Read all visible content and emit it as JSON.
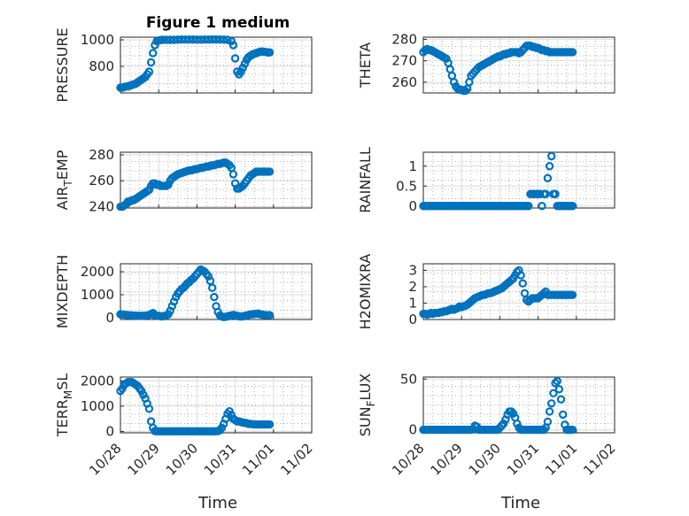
{
  "figure": {
    "title": "Figure 1 medium",
    "marker_color": "#0072bd",
    "x_tick_labels": [
      "10/28",
      "10/29",
      "10/30",
      "10/31",
      "11/01",
      "11/02"
    ],
    "x_label": "Time"
  },
  "chart_data": [
    {
      "type": "scatter",
      "ylabel": "PRESSURE",
      "xlim": [
        0,
        5
      ],
      "ylim": [
        600,
        1020
      ],
      "yticks": [
        800,
        1000
      ],
      "ytick_labels": [
        "800",
        "1000"
      ],
      "grid": true,
      "x": [
        0.0,
        0.05,
        0.1,
        0.15,
        0.2,
        0.25,
        0.3,
        0.35,
        0.4,
        0.45,
        0.5,
        0.55,
        0.6,
        0.65,
        0.7,
        0.75,
        0.8,
        0.85,
        0.9,
        0.95,
        1.0,
        1.05,
        1.1,
        1.2,
        1.3,
        1.4,
        1.5,
        1.6,
        1.7,
        1.8,
        1.9,
        2.0,
        2.1,
        2.2,
        2.3,
        2.4,
        2.5,
        2.6,
        2.7,
        2.8,
        2.9,
        2.95,
        3.0,
        3.05,
        3.1,
        3.15,
        3.2,
        3.25,
        3.3,
        3.35,
        3.4,
        3.45,
        3.5,
        3.55,
        3.6,
        3.65,
        3.7,
        3.75,
        3.8,
        3.85,
        3.9
      ],
      "y": [
        640,
        640,
        645,
        648,
        650,
        655,
        660,
        665,
        670,
        680,
        690,
        700,
        710,
        720,
        740,
        760,
        830,
        900,
        960,
        990,
        995,
        998,
        1000,
        1000,
        1000,
        1000,
        1001,
        1002,
        1002,
        1002,
        1002,
        1001,
        1001,
        1002,
        1002,
        1003,
        1003,
        1002,
        1001,
        1000,
        990,
        960,
        860,
        760,
        740,
        760,
        790,
        820,
        850,
        870,
        880,
        890,
        895,
        900,
        905,
        910,
        912,
        910,
        908,
        905,
        905
      ]
    },
    {
      "type": "scatter",
      "ylabel": "THETA",
      "xlim": [
        0,
        5
      ],
      "ylim": [
        255,
        281
      ],
      "yticks": [
        260,
        270,
        280
      ],
      "ytick_labels": [
        "260",
        "270",
        "280"
      ],
      "grid": true,
      "x": [
        0.0,
        0.05,
        0.1,
        0.15,
        0.2,
        0.25,
        0.3,
        0.35,
        0.4,
        0.45,
        0.5,
        0.55,
        0.6,
        0.65,
        0.7,
        0.75,
        0.8,
        0.85,
        0.9,
        0.95,
        1.0,
        1.05,
        1.1,
        1.15,
        1.2,
        1.25,
        1.3,
        1.35,
        1.4,
        1.45,
        1.5,
        1.55,
        1.6,
        1.65,
        1.7,
        1.75,
        1.8,
        1.85,
        1.9,
        1.95,
        2.0,
        2.05,
        2.1,
        2.15,
        2.2,
        2.25,
        2.3,
        2.35,
        2.4,
        2.45,
        2.5,
        2.55,
        2.6,
        2.65,
        2.7,
        2.75,
        2.8,
        2.85,
        2.9,
        2.95,
        3.0,
        3.05,
        3.1,
        3.15,
        3.2,
        3.25,
        3.3,
        3.35,
        3.4,
        3.45,
        3.5,
        3.55,
        3.6,
        3.65,
        3.7,
        3.75,
        3.8,
        3.85,
        3.9
      ],
      "y": [
        274,
        275,
        275.5,
        275,
        275,
        274.5,
        274,
        273.5,
        273,
        272.5,
        272,
        271.5,
        271,
        269,
        266,
        263,
        260,
        258,
        257,
        256.5,
        256.5,
        256,
        256,
        257,
        260,
        263,
        264,
        265,
        266,
        267,
        267.5,
        268,
        268.5,
        269,
        269.5,
        270,
        270.5,
        271,
        271.5,
        272,
        272,
        272.5,
        273,
        273,
        273.5,
        273.5,
        274,
        274,
        274,
        274,
        273.5,
        274,
        275,
        276,
        277,
        277,
        277,
        276.5,
        276.5,
        276,
        276,
        275.5,
        275,
        275,
        274.5,
        274.5,
        274,
        274,
        274,
        274,
        274,
        274,
        274,
        274,
        274,
        274,
        274,
        274,
        274
      ]
    },
    {
      "type": "scatter",
      "ylabel": "AIR_TEMP",
      "xlim": [
        0,
        5
      ],
      "ylim": [
        239,
        282
      ],
      "yticks": [
        240,
        260,
        280
      ],
      "ytick_labels": [
        "240",
        "260",
        "280"
      ],
      "grid": true,
      "x": [
        0.0,
        0.05,
        0.1,
        0.15,
        0.2,
        0.25,
        0.3,
        0.35,
        0.4,
        0.45,
        0.5,
        0.55,
        0.6,
        0.65,
        0.7,
        0.75,
        0.8,
        0.85,
        0.9,
        0.95,
        1.0,
        1.05,
        1.1,
        1.15,
        1.2,
        1.25,
        1.3,
        1.35,
        1.4,
        1.45,
        1.5,
        1.55,
        1.6,
        1.65,
        1.7,
        1.75,
        1.8,
        1.85,
        1.9,
        1.95,
        2.0,
        2.05,
        2.1,
        2.15,
        2.2,
        2.25,
        2.3,
        2.35,
        2.4,
        2.45,
        2.5,
        2.55,
        2.6,
        2.65,
        2.7,
        2.75,
        2.8,
        2.85,
        2.9,
        2.95,
        3.0,
        3.05,
        3.1,
        3.15,
        3.2,
        3.25,
        3.3,
        3.35,
        3.4,
        3.45,
        3.5,
        3.55,
        3.6,
        3.65,
        3.7,
        3.75,
        3.8,
        3.85,
        3.9
      ],
      "y": [
        240,
        240,
        241,
        242,
        244,
        244,
        245,
        245,
        246,
        247,
        248,
        249,
        250,
        251,
        252,
        253,
        256,
        258,
        258,
        257,
        257,
        256,
        256,
        256,
        256,
        257,
        260,
        262,
        263,
        264,
        265,
        265.5,
        266,
        266.5,
        267,
        267.5,
        268,
        268,
        268.5,
        269,
        269,
        269.5,
        270,
        270,
        270.5,
        271,
        271,
        271.5,
        272,
        272,
        272.5,
        273,
        273,
        273.5,
        274,
        274,
        273,
        272,
        270,
        265,
        258,
        254,
        254,
        255,
        256,
        258,
        260,
        262,
        264,
        265,
        266,
        267,
        267,
        267,
        267,
        267,
        267,
        267,
        267
      ]
    },
    {
      "type": "scatter",
      "ylabel": "RAINFALL",
      "xlim": [
        0,
        5
      ],
      "ylim": [
        -0.05,
        1.35
      ],
      "yticks": [
        0,
        0.5,
        1
      ],
      "ytick_labels": [
        "0",
        "0.5",
        "1"
      ],
      "grid": true,
      "x": [
        0.0,
        0.05,
        0.1,
        0.15,
        0.2,
        0.25,
        0.3,
        0.35,
        0.4,
        0.45,
        0.5,
        0.55,
        0.6,
        0.65,
        0.7,
        0.75,
        0.8,
        0.85,
        0.9,
        0.95,
        1.0,
        1.05,
        1.1,
        1.15,
        1.2,
        1.25,
        1.3,
        1.35,
        1.4,
        1.45,
        1.5,
        1.55,
        1.6,
        1.65,
        1.7,
        1.75,
        1.8,
        1.85,
        1.9,
        1.95,
        2.0,
        2.05,
        2.1,
        2.15,
        2.2,
        2.25,
        2.3,
        2.35,
        2.4,
        2.45,
        2.5,
        2.55,
        2.6,
        2.65,
        2.7,
        2.75,
        2.8,
        2.85,
        2.9,
        2.95,
        3.0,
        3.05,
        3.1,
        3.15,
        3.2,
        3.25,
        3.3,
        3.35,
        3.4,
        3.45,
        3.5,
        3.55,
        3.6,
        3.65,
        3.7,
        3.75,
        3.8,
        3.85,
        3.9
      ],
      "y": [
        0,
        0,
        0,
        0,
        0,
        0,
        0,
        0,
        0,
        0,
        0,
        0,
        0,
        0,
        0,
        0,
        0,
        0,
        0,
        0,
        0,
        0,
        0,
        0,
        0,
        0,
        0,
        0,
        0,
        0,
        0,
        0,
        0,
        0,
        0,
        0,
        0,
        0,
        0,
        0,
        0,
        0,
        0,
        0,
        0,
        0,
        0,
        0,
        0,
        0,
        0,
        0,
        0,
        0,
        0,
        0,
        0.3,
        0.3,
        0.3,
        0.3,
        0.3,
        0.3,
        0,
        0.3,
        0.3,
        0.7,
        1.0,
        1.25,
        0.3,
        0.3,
        0,
        0,
        0,
        0,
        0,
        0,
        0,
        0,
        0
      ]
    },
    {
      "type": "scatter",
      "ylabel": "MIXDEPTH",
      "xlim": [
        0,
        5
      ],
      "ylim": [
        -80,
        2350
      ],
      "yticks": [
        0,
        1000,
        2000
      ],
      "ytick_labels": [
        "0",
        "1000",
        "2000"
      ],
      "grid": true,
      "x": [
        0.0,
        0.05,
        0.1,
        0.15,
        0.2,
        0.25,
        0.3,
        0.35,
        0.4,
        0.45,
        0.5,
        0.55,
        0.6,
        0.65,
        0.7,
        0.75,
        0.8,
        0.85,
        0.9,
        0.95,
        1.0,
        1.05,
        1.1,
        1.15,
        1.2,
        1.25,
        1.3,
        1.35,
        1.4,
        1.45,
        1.5,
        1.55,
        1.6,
        1.65,
        1.7,
        1.75,
        1.8,
        1.85,
        1.9,
        1.95,
        2.0,
        2.05,
        2.1,
        2.15,
        2.2,
        2.25,
        2.3,
        2.35,
        2.4,
        2.45,
        2.5,
        2.55,
        2.6,
        2.65,
        2.7,
        2.75,
        2.8,
        2.85,
        2.9,
        2.95,
        3.0,
        3.05,
        3.1,
        3.15,
        3.2,
        3.25,
        3.3,
        3.35,
        3.4,
        3.45,
        3.5,
        3.55,
        3.6,
        3.65,
        3.7,
        3.75,
        3.8,
        3.85,
        3.9
      ],
      "y": [
        150,
        140,
        130,
        120,
        110,
        100,
        100,
        90,
        90,
        80,
        80,
        80,
        80,
        90,
        100,
        120,
        150,
        200,
        100,
        80,
        80,
        60,
        60,
        80,
        100,
        150,
        300,
        500,
        700,
        900,
        1050,
        1150,
        1250,
        1300,
        1400,
        1500,
        1550,
        1650,
        1700,
        1800,
        1900,
        2000,
        2100,
        2050,
        2000,
        1900,
        1800,
        1600,
        1300,
        900,
        500,
        250,
        100,
        50,
        30,
        40,
        60,
        80,
        100,
        120,
        100,
        80,
        60,
        50,
        60,
        80,
        100,
        120,
        140,
        150,
        160,
        170,
        180,
        150,
        130,
        120,
        110,
        110,
        110
      ]
    },
    {
      "type": "scatter",
      "ylabel": "H2OMIXRA",
      "xlim": [
        0,
        5
      ],
      "ylim": [
        0,
        3.4
      ],
      "yticks": [
        0,
        1,
        2,
        3
      ],
      "ytick_labels": [
        "0",
        "1",
        "2",
        "3"
      ],
      "grid": true,
      "x": [
        0.0,
        0.05,
        0.1,
        0.15,
        0.2,
        0.25,
        0.3,
        0.35,
        0.4,
        0.45,
        0.5,
        0.55,
        0.6,
        0.65,
        0.7,
        0.75,
        0.8,
        0.85,
        0.9,
        0.95,
        1.0,
        1.05,
        1.1,
        1.15,
        1.2,
        1.25,
        1.3,
        1.35,
        1.4,
        1.45,
        1.5,
        1.55,
        1.6,
        1.65,
        1.7,
        1.75,
        1.8,
        1.85,
        1.9,
        1.95,
        2.0,
        2.05,
        2.1,
        2.15,
        2.2,
        2.25,
        2.3,
        2.35,
        2.4,
        2.45,
        2.5,
        2.55,
        2.6,
        2.65,
        2.7,
        2.75,
        2.8,
        2.85,
        2.9,
        2.95,
        3.0,
        3.05,
        3.1,
        3.15,
        3.2,
        3.25,
        3.3,
        3.35,
        3.4,
        3.45,
        3.5,
        3.55,
        3.6,
        3.65,
        3.7,
        3.75,
        3.8,
        3.85,
        3.9
      ],
      "y": [
        0.35,
        0.35,
        0.3,
        0.35,
        0.4,
        0.35,
        0.4,
        0.4,
        0.4,
        0.45,
        0.45,
        0.5,
        0.5,
        0.55,
        0.6,
        0.65,
        0.6,
        0.65,
        0.7,
        0.8,
        0.75,
        0.8,
        0.85,
        0.9,
        1.0,
        1.1,
        1.2,
        1.3,
        1.35,
        1.4,
        1.45,
        1.5,
        1.5,
        1.55,
        1.6,
        1.6,
        1.65,
        1.7,
        1.75,
        1.8,
        1.85,
        1.9,
        2.0,
        2.1,
        2.2,
        2.3,
        2.4,
        2.5,
        2.7,
        2.9,
        3.0,
        2.7,
        2.2,
        1.6,
        1.2,
        1.1,
        1.2,
        1.3,
        1.3,
        1.3,
        1.3,
        1.4,
        1.5,
        1.6,
        1.7,
        1.5,
        1.5,
        1.5,
        1.5,
        1.5,
        1.5,
        1.5,
        1.5,
        1.5,
        1.5,
        1.5,
        1.5,
        1.5,
        1.5
      ]
    },
    {
      "type": "scatter",
      "ylabel": "TERR_MSL",
      "xlim": [
        0,
        5
      ],
      "ylim": [
        -50,
        2150
      ],
      "yticks": [
        0,
        1000,
        2000
      ],
      "ytick_labels": [
        "0",
        "1000",
        "2000"
      ],
      "grid": true,
      "x": [
        0.0,
        0.05,
        0.1,
        0.15,
        0.2,
        0.25,
        0.3,
        0.35,
        0.4,
        0.45,
        0.5,
        0.55,
        0.6,
        0.65,
        0.7,
        0.75,
        0.8,
        0.85,
        0.9,
        0.95,
        1.0,
        1.05,
        1.1,
        1.15,
        1.2,
        1.25,
        1.3,
        1.35,
        1.4,
        1.45,
        1.5,
        1.55,
        1.6,
        1.65,
        1.7,
        1.75,
        1.8,
        1.85,
        1.9,
        1.95,
        2.0,
        2.05,
        2.1,
        2.15,
        2.2,
        2.25,
        2.3,
        2.35,
        2.4,
        2.45,
        2.5,
        2.55,
        2.6,
        2.65,
        2.7,
        2.75,
        2.8,
        2.85,
        2.9,
        2.95,
        3.0,
        3.05,
        3.1,
        3.15,
        3.2,
        3.25,
        3.3,
        3.35,
        3.4,
        3.45,
        3.5,
        3.55,
        3.6,
        3.65,
        3.7,
        3.75,
        3.8,
        3.85,
        3.9
      ],
      "y": [
        1600,
        1700,
        1850,
        1900,
        1950,
        1950,
        1950,
        1900,
        1850,
        1800,
        1700,
        1600,
        1450,
        1300,
        1100,
        900,
        400,
        150,
        20,
        10,
        10,
        10,
        10,
        10,
        10,
        10,
        10,
        10,
        10,
        10,
        10,
        10,
        10,
        10,
        10,
        10,
        10,
        10,
        10,
        10,
        10,
        10,
        10,
        10,
        10,
        10,
        10,
        10,
        10,
        10,
        10,
        20,
        50,
        150,
        300,
        500,
        700,
        800,
        650,
        500,
        450,
        400,
        400,
        380,
        350,
        350,
        330,
        300,
        300,
        290,
        280,
        280,
        280,
        280,
        280,
        280,
        280,
        280,
        280
      ]
    },
    {
      "type": "scatter",
      "ylabel": "SUN_FLUX",
      "xlim": [
        0,
        5
      ],
      "ylim": [
        -3,
        52
      ],
      "yticks": [
        0,
        50
      ],
      "ytick_labels": [
        "0",
        "50"
      ],
      "grid": true,
      "x": [
        0.0,
        0.05,
        0.1,
        0.15,
        0.2,
        0.25,
        0.3,
        0.35,
        0.4,
        0.45,
        0.5,
        0.55,
        0.6,
        0.65,
        0.7,
        0.75,
        0.8,
        0.85,
        0.9,
        0.95,
        1.0,
        1.05,
        1.1,
        1.15,
        1.2,
        1.25,
        1.3,
        1.35,
        1.4,
        1.45,
        1.5,
        1.55,
        1.6,
        1.65,
        1.7,
        1.75,
        1.8,
        1.85,
        1.9,
        1.95,
        2.0,
        2.05,
        2.1,
        2.15,
        2.2,
        2.25,
        2.3,
        2.35,
        2.4,
        2.45,
        2.5,
        2.55,
        2.6,
        2.65,
        2.7,
        2.75,
        2.8,
        2.85,
        2.9,
        2.95,
        3.0,
        3.05,
        3.1,
        3.15,
        3.2,
        3.25,
        3.3,
        3.35,
        3.4,
        3.45,
        3.5,
        3.55,
        3.6,
        3.65,
        3.7,
        3.75,
        3.8,
        3.85,
        3.9
      ],
      "y": [
        0,
        0,
        0,
        0,
        0,
        0,
        0,
        0,
        0,
        0,
        0,
        0,
        0,
        0,
        0,
        0,
        0,
        0,
        0,
        0,
        0,
        0,
        0,
        0,
        0,
        0,
        1,
        4,
        3,
        0,
        0,
        0,
        0,
        0,
        0,
        0,
        0,
        0,
        0,
        0,
        2,
        4,
        6,
        10,
        15,
        18,
        18,
        16,
        12,
        6,
        2,
        0,
        0,
        0,
        0,
        0,
        0,
        0,
        0,
        0,
        0,
        0,
        0,
        0,
        2,
        8,
        18,
        26,
        36,
        46,
        48,
        40,
        30,
        15,
        5,
        0,
        0,
        0,
        0
      ]
    }
  ]
}
